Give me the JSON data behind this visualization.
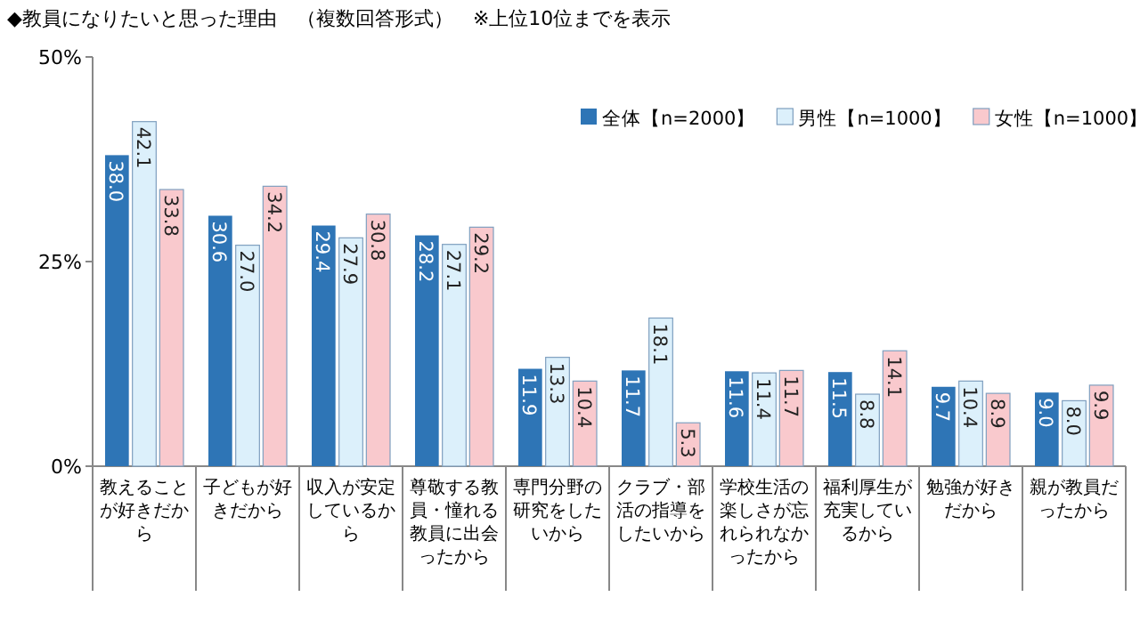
{
  "chart_data": {
    "type": "bar",
    "title": "◆教員になりたいと思った理由　（複数回答形式）　※上位10位までを表示",
    "categories": [
      "教えることが好きだから",
      "子どもが好きだから",
      "収入が安定しているから",
      "尊敬する教員・憧れる教員に出会ったから",
      "専門分野の研究をしたいから",
      "クラブ・部活の指導をしたいから",
      "学校生活の楽しさが忘れられなかったから",
      "福利厚生が充実しているから",
      "勉強が好きだから",
      "親が教員だったから"
    ],
    "series": [
      {
        "name": "全体【n=2000】",
        "color": "#2e75b6",
        "values": [
          38.0,
          30.6,
          29.4,
          28.2,
          11.9,
          11.7,
          11.6,
          11.5,
          9.7,
          9.0
        ],
        "value_labels": [
          "38.0",
          "30.6",
          "29.4",
          "28.2",
          "11.9",
          "11.7",
          "11.6",
          "11.5",
          "9.7",
          "9.0"
        ]
      },
      {
        "name": "男性【n=1000】",
        "color": "#dcf0fb",
        "values": [
          42.1,
          27.0,
          27.9,
          27.1,
          13.3,
          18.1,
          11.4,
          8.8,
          10.4,
          8.0
        ],
        "value_labels": [
          "42.1",
          "27.0",
          "27.9",
          "27.1",
          "13.3",
          "18.1",
          "11.4",
          "8.8",
          "10.4",
          "8.0"
        ]
      },
      {
        "name": "女性【n=1000】",
        "color": "#f9c9cd",
        "values": [
          33.8,
          34.2,
          30.8,
          29.2,
          10.4,
          5.3,
          11.7,
          14.1,
          8.9,
          9.9
        ],
        "value_labels": [
          "33.8",
          "34.2",
          "30.8",
          "29.2",
          "10.4",
          "5.3",
          "11.7",
          "14.1",
          "8.9",
          "9.9"
        ]
      }
    ],
    "ylim": [
      0,
      50
    ],
    "yticks": [
      {
        "value": 0,
        "label": "0%"
      },
      {
        "value": 25,
        "label": "25%"
      },
      {
        "value": 50,
        "label": "50%"
      }
    ],
    "grid": false,
    "legend": "top right"
  }
}
